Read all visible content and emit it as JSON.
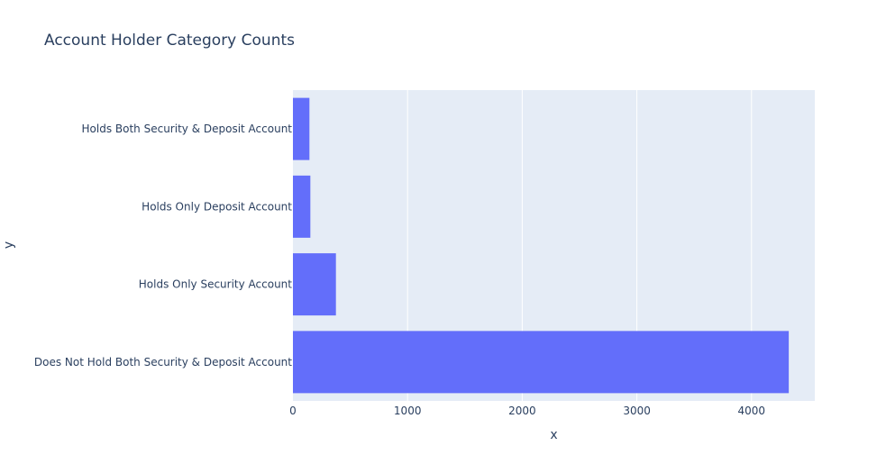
{
  "chart_data": {
    "type": "bar",
    "orientation": "horizontal",
    "title": "Account Holder Category Counts",
    "xlabel": "x",
    "ylabel": "y",
    "categories": [
      "Does Not Hold Both Security & Deposit Account",
      "Holds Only Security Account",
      "Holds Only Deposit Account",
      "Holds Both Security & Deposit Account"
    ],
    "values": [
      4325,
      375,
      152,
      144
    ],
    "xlim": [
      0,
      4552
    ],
    "x_ticks": [
      0,
      1000,
      2000,
      3000,
      4000
    ],
    "grid": true,
    "legend": "none",
    "colors": {
      "bar": "#636efa",
      "plot_background": "#e5ecf6",
      "grid": "#ffffff",
      "text": "#2a3f5f"
    }
  }
}
